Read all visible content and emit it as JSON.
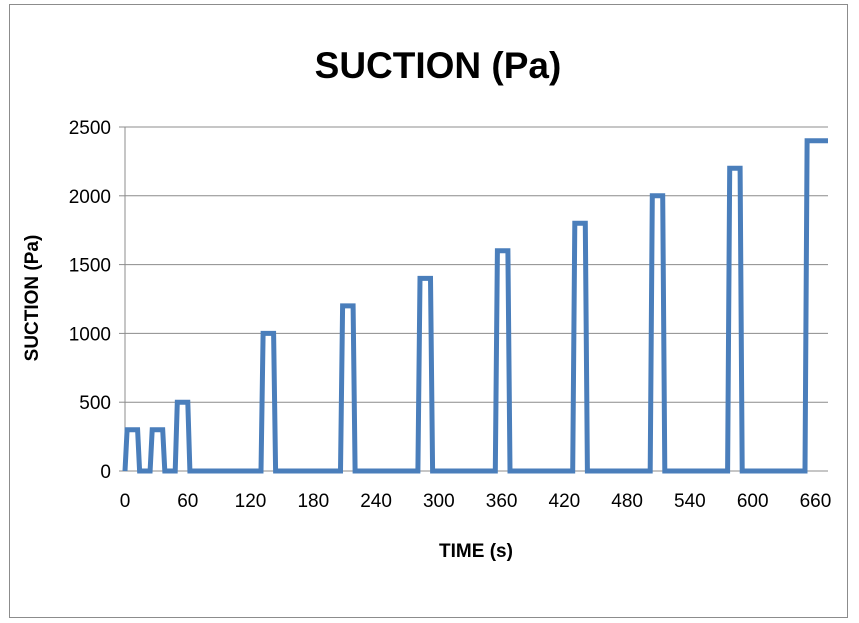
{
  "chart_data": {
    "type": "line",
    "title": "SUCTION (Pa)",
    "xlabel": "TIME (s)",
    "ylabel": "SUCTION (Pa)",
    "xlim": [
      0,
      672
    ],
    "ylim": [
      0,
      2500
    ],
    "xticks": [
      0,
      60,
      120,
      180,
      240,
      300,
      360,
      420,
      480,
      540,
      600,
      660
    ],
    "yticks": [
      0,
      500,
      1000,
      1500,
      2000,
      2500
    ],
    "grid": "horizontal",
    "legend": "none",
    "color": "#4a7ebb",
    "series": [
      {
        "x": [
          0,
          2,
          12,
          14,
          24,
          26,
          36,
          38,
          48,
          50,
          60,
          62,
          130,
          132,
          142,
          144,
          206,
          208,
          218,
          220,
          280,
          282,
          292,
          294,
          354,
          356,
          366,
          368,
          428,
          430,
          440,
          442,
          502,
          504,
          514,
          516,
          576,
          578,
          588,
          590,
          650,
          652,
          672
        ],
        "y": [
          0,
          300,
          300,
          0,
          0,
          300,
          300,
          0,
          0,
          500,
          500,
          0,
          0,
          1000,
          1000,
          0,
          0,
          1200,
          1200,
          0,
          0,
          1400,
          1400,
          0,
          0,
          1600,
          1600,
          0,
          0,
          1800,
          1800,
          0,
          0,
          2000,
          2000,
          0,
          0,
          2200,
          2200,
          0,
          0,
          2400,
          2400
        ]
      }
    ]
  }
}
